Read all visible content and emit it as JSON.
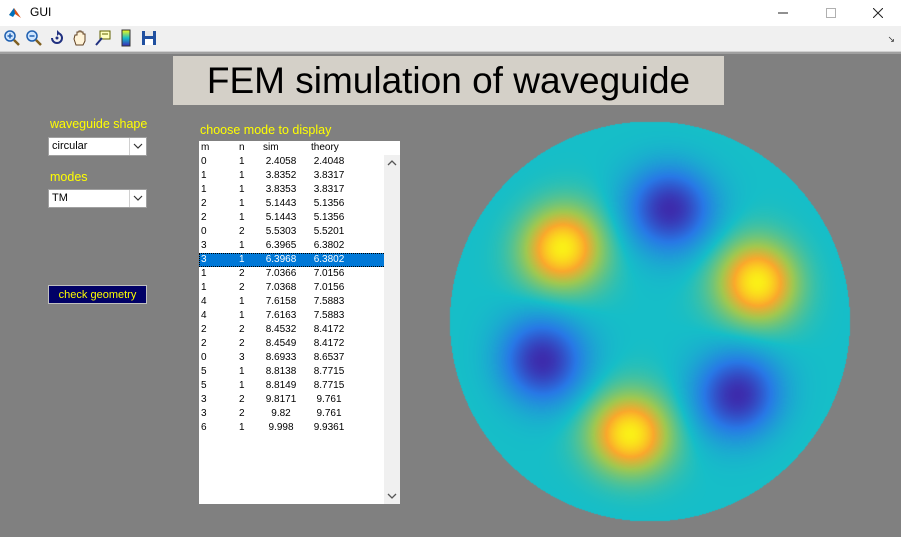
{
  "window": {
    "title": "GUI",
    "minimize_icon": "minimize-icon",
    "maximize_icon": "maximize-icon",
    "close_icon": "close-icon"
  },
  "toolbar": {
    "icons": [
      "zoom-in-icon",
      "zoom-out-icon",
      "rotate-icon",
      "pan-icon",
      "data-cursor-icon",
      "colorbar-icon",
      "save-icon"
    ]
  },
  "banner": {
    "title": "FEM simulation of waveguide"
  },
  "shape": {
    "label": "waveguide shape",
    "value": "circular"
  },
  "modes": {
    "label": "modes",
    "value": "TM"
  },
  "check_button": {
    "label": "check geometry"
  },
  "list": {
    "label": "choose mode to display",
    "headers": {
      "m": "m",
      "n": "n",
      "sim": "sim",
      "theory": "theory"
    },
    "selected_index": 7,
    "rows": [
      {
        "m": "0",
        "n": "1",
        "sim": "2.4058",
        "theory": "2.4048"
      },
      {
        "m": "1",
        "n": "1",
        "sim": "3.8352",
        "theory": "3.8317"
      },
      {
        "m": "1",
        "n": "1",
        "sim": "3.8353",
        "theory": "3.8317"
      },
      {
        "m": "2",
        "n": "1",
        "sim": "5.1443",
        "theory": "5.1356"
      },
      {
        "m": "2",
        "n": "1",
        "sim": "5.1443",
        "theory": "5.1356"
      },
      {
        "m": "0",
        "n": "2",
        "sim": "5.5303",
        "theory": "5.5201"
      },
      {
        "m": "3",
        "n": "1",
        "sim": "6.3965",
        "theory": "6.3802"
      },
      {
        "m": "3",
        "n": "1",
        "sim": "6.3968",
        "theory": "6.3802"
      },
      {
        "m": "1",
        "n": "2",
        "sim": "7.0366",
        "theory": "7.0156"
      },
      {
        "m": "1",
        "n": "2",
        "sim": "7.0368",
        "theory": "7.0156"
      },
      {
        "m": "4",
        "n": "1",
        "sim": "7.6158",
        "theory": "7.5883"
      },
      {
        "m": "4",
        "n": "1",
        "sim": "7.6163",
        "theory": "7.5883"
      },
      {
        "m": "2",
        "n": "2",
        "sim": "8.4532",
        "theory": "8.4172"
      },
      {
        "m": "2",
        "n": "2",
        "sim": "8.4549",
        "theory": "8.4172"
      },
      {
        "m": "0",
        "n": "3",
        "sim": "8.6933",
        "theory": "8.6537"
      },
      {
        "m": "5",
        "n": "1",
        "sim": "8.8138",
        "theory": "8.7715"
      },
      {
        "m": "5",
        "n": "1",
        "sim": "8.8149",
        "theory": "8.7715"
      },
      {
        "m": "3",
        "n": "2",
        "sim": "9.8171",
        "theory": "9.761"
      },
      {
        "m": "3",
        "n": "2",
        "sim": "9.82",
        "theory": "9.761"
      },
      {
        "m": "6",
        "n": "1",
        "sim": "9.998",
        "theory": "9.9361"
      }
    ]
  },
  "plot": {
    "colors": {
      "background": "#16bec8",
      "high": "#fafa14",
      "mid": "#f9a82c",
      "low": "#3a26b8",
      "deep": "#3d0f8f"
    },
    "peaks": [
      {
        "angle_deg": 0,
        "sign": 1
      },
      {
        "angle_deg": 60,
        "sign": -1
      },
      {
        "angle_deg": 120,
        "sign": 1
      },
      {
        "angle_deg": 180,
        "sign": -1
      },
      {
        "angle_deg": 240,
        "sign": 1
      },
      {
        "angle_deg": 300,
        "sign": -1
      }
    ]
  }
}
